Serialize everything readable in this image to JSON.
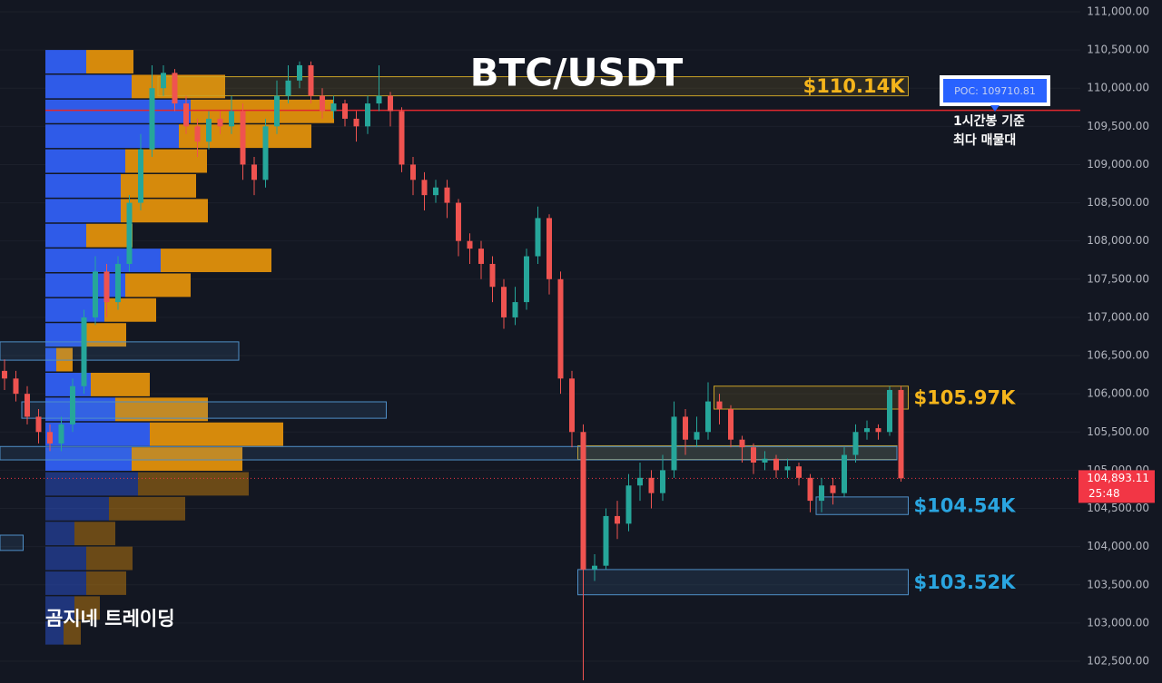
{
  "chart_data": {
    "type": "candlestick",
    "title": "BTC/USDT",
    "watermark": "곰지네 트레이딩",
    "ylim": [
      102215,
      111154
    ],
    "yticks": [
      {
        "value": 111000,
        "label": "111,000.00"
      },
      {
        "value": 110500,
        "label": "110,500.00"
      },
      {
        "value": 110000,
        "label": "110,000.00"
      },
      {
        "value": 109500,
        "label": "109,500.00"
      },
      {
        "value": 109000,
        "label": "109,000.00"
      },
      {
        "value": 108500,
        "label": "108,500.00"
      },
      {
        "value": 108000,
        "label": "108,000.00"
      },
      {
        "value": 107500,
        "label": "107,500.00"
      },
      {
        "value": 107000,
        "label": "107,000.00"
      },
      {
        "value": 106500,
        "label": "106,500.00"
      },
      {
        "value": 106000,
        "label": "106,000.00"
      },
      {
        "value": 105500,
        "label": "105,500.00"
      },
      {
        "value": 105000,
        "label": "105,000.00"
      },
      {
        "value": 104500,
        "label": "104,500.00"
      },
      {
        "value": 104000,
        "label": "104,000.00"
      },
      {
        "value": 103500,
        "label": "103,500.00"
      },
      {
        "value": 103000,
        "label": "103,000.00"
      },
      {
        "value": 102500,
        "label": "102,500.00"
      }
    ],
    "grid": true,
    "up_color": "#26a69a",
    "down_color": "#ef5350",
    "candles": [
      [
        106300,
        106450,
        106050,
        106200
      ],
      [
        106200,
        106300,
        105900,
        106000
      ],
      [
        106000,
        106100,
        105600,
        105700
      ],
      [
        105700,
        105800,
        105350,
        105500
      ],
      [
        105500,
        105600,
        105250,
        105350
      ],
      [
        105350,
        105700,
        105250,
        105600
      ],
      [
        105600,
        106200,
        105500,
        106100
      ],
      [
        106100,
        107100,
        106000,
        107000
      ],
      [
        107000,
        107800,
        106900,
        107600
      ],
      [
        107600,
        107700,
        107000,
        107200
      ],
      [
        107200,
        107800,
        107100,
        107700
      ],
      [
        107700,
        108600,
        107600,
        108500
      ],
      [
        108500,
        109400,
        108400,
        109200
      ],
      [
        109200,
        110300,
        109100,
        110000
      ],
      [
        110000,
        110300,
        109900,
        110200
      ],
      [
        110200,
        110250,
        109700,
        109800
      ],
      [
        109800,
        109900,
        109400,
        109500
      ],
      [
        109500,
        109600,
        109100,
        109300
      ],
      [
        109300,
        109700,
        109200,
        109600
      ],
      [
        109600,
        109700,
        109400,
        109500
      ],
      [
        109500,
        109900,
        109400,
        109700
      ],
      [
        109700,
        109800,
        108800,
        109000
      ],
      [
        109000,
        109100,
        108600,
        108800
      ],
      [
        108800,
        109600,
        108700,
        109500
      ],
      [
        109500,
        110100,
        109400,
        109900
      ],
      [
        109900,
        110300,
        109800,
        110100
      ],
      [
        110100,
        110350,
        110000,
        110300
      ],
      [
        110300,
        110350,
        109800,
        109900
      ],
      [
        109900,
        110000,
        109600,
        109700
      ],
      [
        109700,
        109900,
        109600,
        109800
      ],
      [
        109800,
        109850,
        109500,
        109600
      ],
      [
        109600,
        109700,
        109300,
        109500
      ],
      [
        109500,
        109900,
        109400,
        109800
      ],
      [
        109800,
        110300,
        109700,
        109900
      ],
      [
        109900,
        109950,
        109500,
        109700
      ],
      [
        109700,
        109750,
        108900,
        109000
      ],
      [
        109000,
        109100,
        108600,
        108800
      ],
      [
        108800,
        108900,
        108400,
        108600
      ],
      [
        108600,
        108800,
        108500,
        108700
      ],
      [
        108700,
        108800,
        108300,
        108500
      ],
      [
        108500,
        108550,
        107800,
        108000
      ],
      [
        108000,
        108100,
        107700,
        107900
      ],
      [
        107900,
        108000,
        107500,
        107700
      ],
      [
        107700,
        107800,
        107200,
        107400
      ],
      [
        107400,
        107500,
        106850,
        107000
      ],
      [
        107000,
        107400,
        106900,
        107200
      ],
      [
        107200,
        107900,
        107100,
        107800
      ],
      [
        107800,
        108450,
        107700,
        108300
      ],
      [
        108300,
        108350,
        107300,
        107500
      ],
      [
        107500,
        107600,
        106000,
        106200
      ],
      [
        106200,
        106300,
        105300,
        105500
      ],
      [
        105500,
        105600,
        102250,
        103700
      ],
      [
        103700,
        103900,
        103550,
        103750
      ],
      [
        103750,
        104500,
        103700,
        104400
      ],
      [
        104400,
        104600,
        104100,
        104300
      ],
      [
        104300,
        104950,
        104200,
        104800
      ],
      [
        104800,
        105100,
        104600,
        104900
      ],
      [
        104900,
        105000,
        104500,
        104700
      ],
      [
        104700,
        105200,
        104600,
        105000
      ],
      [
        105000,
        105900,
        104900,
        105700
      ],
      [
        105700,
        105800,
        105200,
        105400
      ],
      [
        105400,
        105700,
        105300,
        105500
      ],
      [
        105500,
        106150,
        105400,
        105900
      ],
      [
        105900,
        106000,
        105600,
        105800
      ],
      [
        105800,
        105850,
        105300,
        105400
      ],
      [
        105400,
        105450,
        105100,
        105300
      ],
      [
        105300,
        105350,
        104950,
        105100
      ],
      [
        105100,
        105250,
        105000,
        105150
      ],
      [
        105150,
        105200,
        104900,
        105000
      ],
      [
        105000,
        105150,
        104900,
        105050
      ],
      [
        105050,
        105100,
        104800,
        104900
      ],
      [
        104900,
        104950,
        104450,
        104600
      ],
      [
        104600,
        104900,
        104450,
        104800
      ],
      [
        104800,
        104900,
        104550,
        104700
      ],
      [
        104700,
        105300,
        104650,
        105200
      ],
      [
        105200,
        105600,
        105100,
        105500
      ],
      [
        105500,
        105650,
        105400,
        105550
      ],
      [
        105550,
        105600,
        105400,
        105500
      ],
      [
        105500,
        106100,
        105450,
        106050
      ],
      [
        106050,
        106100,
        104850,
        104893.11
      ]
    ],
    "volume_profile": {
      "bins": [
        110500,
        110175,
        109850,
        109525,
        109200,
        108875,
        108550,
        108225,
        107900,
        107575,
        107250,
        106925,
        106600,
        106275,
        105950,
        105625,
        105300,
        104975,
        104650,
        104325,
        104000,
        103675,
        103350,
        103025,
        102700
      ],
      "buy": [
        45,
        95,
        160,
        147,
        88,
        83,
        83,
        45,
        127,
        88,
        65,
        40,
        12,
        50,
        77,
        115,
        95,
        102,
        70,
        32,
        45,
        45,
        32,
        20
      ],
      "sell": [
        52,
        103,
        158,
        146,
        90,
        83,
        96,
        51,
        122,
        72,
        57,
        49,
        18,
        65,
        102,
        147,
        122,
        122,
        84,
        45,
        51,
        44,
        28,
        19
      ],
      "buy_color": "#2f5be8",
      "sell_color": "#d68a0c"
    },
    "zones": [
      {
        "top": 110150,
        "bottom": 109900,
        "start": 14,
        "end": 79,
        "color": "#c9a227",
        "label": "$110.14K"
      },
      {
        "top": 106100,
        "bottom": 105800,
        "start": 63,
        "end": 79,
        "color": "#c9a227",
        "label": "$105.97K"
      },
      {
        "top": 105320,
        "bottom": 105140,
        "start": 51,
        "end": 78,
        "color": "#c9a227"
      },
      {
        "top": 104650,
        "bottom": 104420,
        "start": 72,
        "end": 79,
        "color": "#4f8fc7",
        "label": "$104.54K"
      },
      {
        "top": 103700,
        "bottom": 103370,
        "start": 51,
        "end": 79,
        "color": "#4f8fc7",
        "label": "$103.52K"
      },
      {
        "top": 106680,
        "bottom": 106440,
        "start": 0,
        "end": 20,
        "color": "#4f8fc7"
      },
      {
        "top": 105895,
        "bottom": 105680,
        "start": 2,
        "end": 33,
        "color": "#4f8fc7"
      },
      {
        "top": 105310,
        "bottom": 105135,
        "start": 0,
        "end": 78,
        "color": "#4f8fc7"
      },
      {
        "top": 104150,
        "bottom": 103950,
        "start": 0,
        "end": 1,
        "color": "#4f8fc7"
      }
    ],
    "poc": {
      "value": 109710.81,
      "label": "POC: 109710.81",
      "note": [
        "1시간봉 기준",
        "최다 매물대"
      ],
      "color": "#e0282e"
    },
    "last_price": {
      "value": 104893.11,
      "label": "104,893.11",
      "countdown": "25:48",
      "color": "#f23645"
    }
  }
}
